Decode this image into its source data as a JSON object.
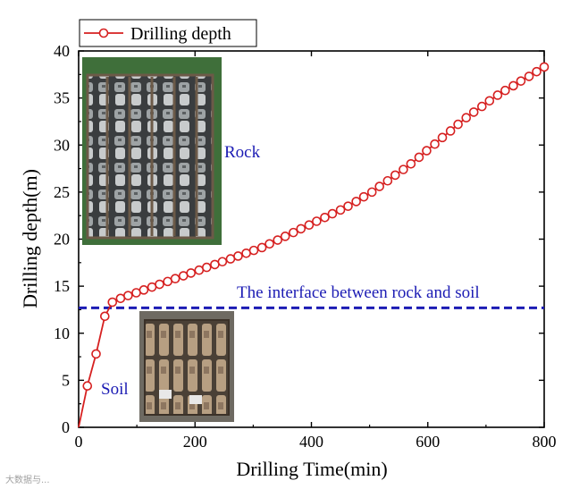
{
  "chart_data": {
    "type": "line",
    "xlabel": "Drilling Time(min)",
    "ylabel": "Drilling depth(m)",
    "xlim": [
      0,
      800
    ],
    "ylim": [
      0,
      40
    ],
    "xticks": [
      0,
      200,
      400,
      600,
      800
    ],
    "yticks": [
      0,
      5,
      10,
      15,
      20,
      25,
      30,
      35,
      40
    ],
    "legend": {
      "position": "top-left",
      "entries": [
        "Drilling depth"
      ]
    },
    "series": [
      {
        "name": "Drilling depth",
        "color": "#d62020",
        "marker": "open-circle",
        "x": [
          0,
          15,
          30,
          45,
          58,
          72,
          85,
          99,
          112,
          126,
          139,
          153,
          166,
          180,
          193,
          207,
          220,
          234,
          247,
          261,
          274,
          288,
          301,
          315,
          328,
          342,
          355,
          369,
          382,
          396,
          409,
          423,
          436,
          450,
          463,
          477,
          490,
          504,
          517,
          531,
          544,
          558,
          571,
          585,
          598,
          612,
          625,
          639,
          652,
          666,
          679,
          693,
          706,
          720,
          733,
          747,
          760,
          774,
          787,
          800
        ],
        "y": [
          0,
          4.4,
          7.8,
          11.8,
          13.3,
          13.7,
          14.0,
          14.3,
          14.6,
          14.9,
          15.2,
          15.5,
          15.8,
          16.1,
          16.4,
          16.7,
          17.0,
          17.3,
          17.6,
          17.9,
          18.2,
          18.5,
          18.8,
          19.1,
          19.5,
          19.9,
          20.3,
          20.7,
          21.1,
          21.5,
          21.9,
          22.3,
          22.7,
          23.1,
          23.5,
          24.0,
          24.5,
          25.0,
          25.6,
          26.2,
          26.8,
          27.4,
          28.0,
          28.7,
          29.4,
          30.1,
          30.8,
          31.5,
          32.2,
          32.9,
          33.5,
          34.1,
          34.7,
          35.3,
          35.8,
          36.3,
          36.8,
          37.3,
          37.8,
          38.3
        ]
      }
    ],
    "reference_line": {
      "y": 12.7,
      "style": "dashed",
      "color": "#1c1cb4",
      "label": "The interface between rock and soil"
    },
    "annotations": {
      "rock": "Rock",
      "soil": "Soil"
    }
  },
  "watermark": "大数据与..."
}
